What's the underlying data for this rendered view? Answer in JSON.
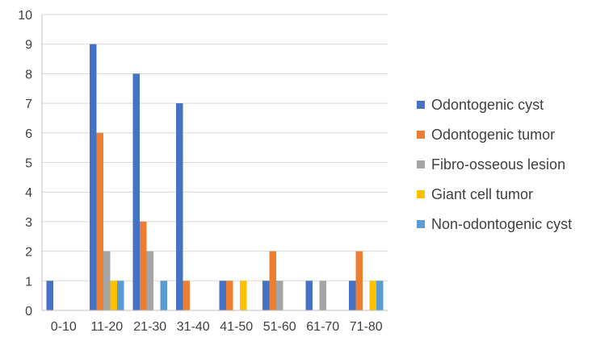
{
  "chart_data": {
    "type": "bar",
    "title": "",
    "xlabel": "",
    "ylabel": "",
    "categories": [
      "0-10",
      "11-20",
      "21-30",
      "31-40",
      "41-50",
      "51-60",
      "61-70",
      "71-80"
    ],
    "ylim": [
      0,
      10
    ],
    "yticks": [
      0,
      1,
      2,
      3,
      4,
      5,
      6,
      7,
      8,
      9,
      10
    ],
    "grid": true,
    "legend_position": "right",
    "series": [
      {
        "name": "Odontogenic cyst",
        "color": "#4472C4",
        "values": [
          1,
          9,
          8,
          7,
          1,
          1,
          1,
          1
        ]
      },
      {
        "name": "Odontogenic tumor",
        "color": "#ED7D31",
        "values": [
          0,
          6,
          3,
          1,
          1,
          2,
          0,
          2
        ]
      },
      {
        "name": "Fibro-osseous lesion",
        "color": "#A5A5A5",
        "values": [
          0,
          2,
          2,
          0,
          0,
          1,
          1,
          0
        ]
      },
      {
        "name": "Giant cell tumor",
        "color": "#FFC000",
        "values": [
          0,
          1,
          0,
          0,
          1,
          0,
          0,
          1
        ]
      },
      {
        "name": "Non-odontogenic cyst",
        "color": "#5B9BD5",
        "values": [
          0,
          1,
          1,
          0,
          0,
          0,
          0,
          1
        ]
      }
    ]
  }
}
